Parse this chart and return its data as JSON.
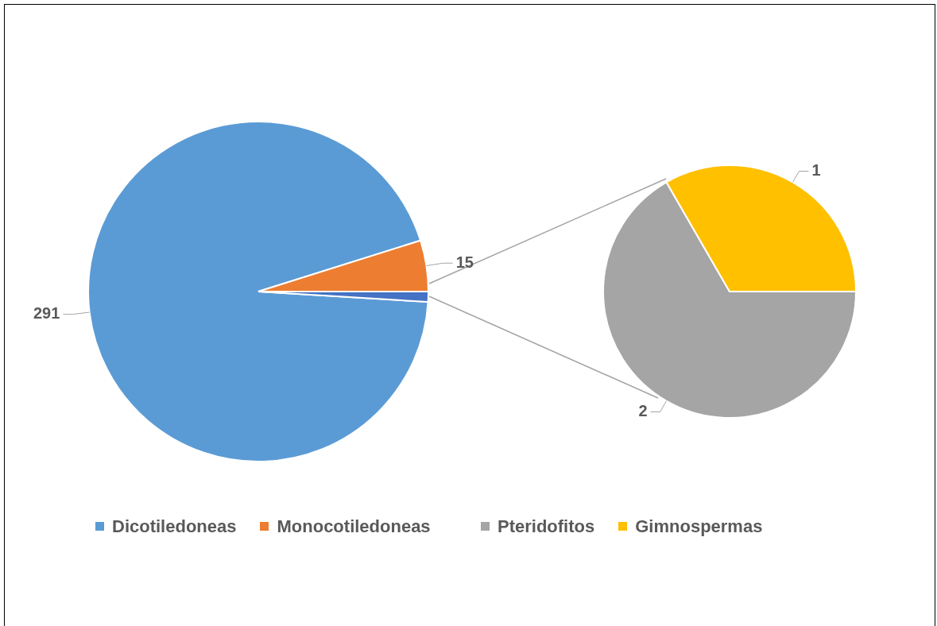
{
  "chart_data": [
    {
      "type": "pie",
      "categories": [
        "Dicotiledoneas",
        "Monocotiledoneas",
        null
      ],
      "values": [
        291,
        15,
        3
      ],
      "colors": [
        "#5b9bd5",
        "#ed7d31",
        "#4472c4"
      ],
      "value_labels": [
        "291",
        "15",
        null
      ],
      "legend": "bottom"
    },
    {
      "type": "pie",
      "categories": [
        "Pteridofitos",
        "Gimnospermas"
      ],
      "values": [
        2,
        1
      ],
      "colors": [
        "#a5a5a5",
        "#ffc000"
      ],
      "data_labels": true,
      "legend": "bottom"
    }
  ]
}
